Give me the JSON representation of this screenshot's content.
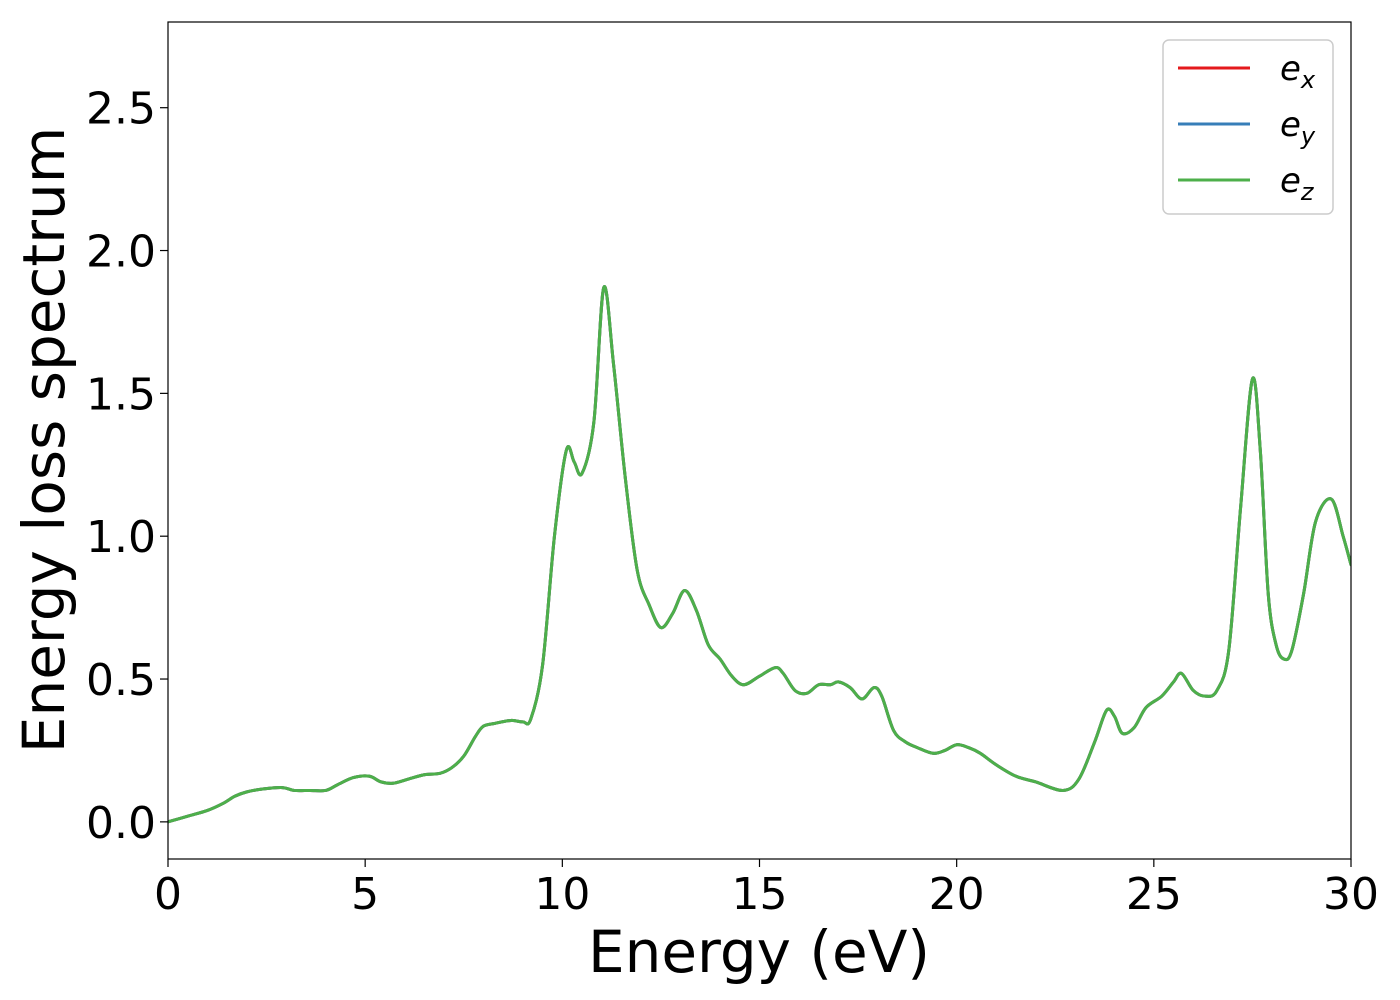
{
  "chart_data": {
    "type": "line",
    "title": "",
    "xlabel": "Energy (eV)",
    "ylabel": "Energy loss spectrum",
    "xlim": [
      0,
      30
    ],
    "ylim": [
      -0.13,
      2.8
    ],
    "xticks": [
      0,
      5,
      10,
      15,
      20,
      25,
      30
    ],
    "xtick_labels": [
      "0",
      "5",
      "10",
      "15",
      "20",
      "25",
      "30"
    ],
    "yticks": [
      0.0,
      0.5,
      1.0,
      1.5,
      2.0,
      2.5
    ],
    "ytick_labels": [
      "0.0",
      "0.5",
      "1.0",
      "1.5",
      "2.0",
      "2.5"
    ],
    "grid": false,
    "legend_position": "top-right",
    "x": [
      0,
      0.5,
      1.0,
      1.4,
      1.7,
      2.0,
      2.4,
      2.9,
      3.2,
      3.6,
      4.0,
      4.3,
      4.7,
      5.1,
      5.4,
      5.7,
      6.1,
      6.5,
      6.9,
      7.2,
      7.5,
      7.8,
      8.0,
      8.3,
      8.7,
      9.0,
      9.2,
      9.5,
      9.8,
      10.1,
      10.3,
      10.5,
      10.8,
      11.05,
      11.3,
      11.6,
      11.9,
      12.2,
      12.5,
      12.8,
      13.1,
      13.4,
      13.7,
      14.0,
      14.3,
      14.6,
      15.0,
      15.4,
      15.6,
      15.9,
      16.2,
      16.5,
      16.8,
      17.0,
      17.3,
      17.6,
      17.9,
      18.1,
      18.4,
      18.7,
      19.0,
      19.4,
      19.7,
      20.0,
      20.3,
      20.6,
      21.0,
      21.5,
      22.0,
      22.7,
      23.1,
      23.5,
      23.8,
      24.0,
      24.2,
      24.5,
      24.8,
      25.2,
      25.5,
      25.7,
      26.0,
      26.3,
      26.6,
      26.9,
      27.2,
      27.5,
      27.7,
      27.9,
      28.1,
      28.3,
      28.5,
      28.8,
      29.1,
      29.5,
      29.8,
      30.0
    ],
    "series": [
      {
        "name": "e_x",
        "color": "#e41a1c",
        "values": [
          0.0,
          0.02,
          0.04,
          0.065,
          0.09,
          0.105,
          0.115,
          0.12,
          0.11,
          0.11,
          0.11,
          0.13,
          0.155,
          0.16,
          0.14,
          0.135,
          0.15,
          0.165,
          0.17,
          0.19,
          0.23,
          0.3,
          0.335,
          0.345,
          0.355,
          0.35,
          0.36,
          0.55,
          1.0,
          1.3,
          1.26,
          1.22,
          1.4,
          1.87,
          1.6,
          1.2,
          0.88,
          0.76,
          0.68,
          0.73,
          0.81,
          0.74,
          0.62,
          0.57,
          0.51,
          0.48,
          0.51,
          0.54,
          0.52,
          0.46,
          0.45,
          0.48,
          0.48,
          0.49,
          0.47,
          0.43,
          0.47,
          0.44,
          0.32,
          0.28,
          0.26,
          0.24,
          0.25,
          0.27,
          0.26,
          0.24,
          0.2,
          0.16,
          0.14,
          0.11,
          0.15,
          0.28,
          0.39,
          0.37,
          0.31,
          0.33,
          0.4,
          0.44,
          0.49,
          0.52,
          0.46,
          0.44,
          0.46,
          0.6,
          1.1,
          1.55,
          1.3,
          0.8,
          0.62,
          0.57,
          0.6,
          0.8,
          1.05,
          1.13,
          1.0,
          0.9
        ]
      },
      {
        "name": "e_y",
        "color": "#377eb8",
        "values": [
          0.0,
          0.02,
          0.04,
          0.065,
          0.09,
          0.105,
          0.115,
          0.12,
          0.11,
          0.11,
          0.11,
          0.13,
          0.155,
          0.16,
          0.14,
          0.135,
          0.15,
          0.165,
          0.17,
          0.19,
          0.23,
          0.3,
          0.335,
          0.345,
          0.355,
          0.35,
          0.36,
          0.55,
          1.0,
          1.3,
          1.26,
          1.22,
          1.4,
          1.87,
          1.6,
          1.2,
          0.88,
          0.76,
          0.68,
          0.73,
          0.81,
          0.74,
          0.62,
          0.57,
          0.51,
          0.48,
          0.51,
          0.54,
          0.52,
          0.46,
          0.45,
          0.48,
          0.48,
          0.49,
          0.47,
          0.43,
          0.47,
          0.44,
          0.32,
          0.28,
          0.26,
          0.24,
          0.25,
          0.27,
          0.26,
          0.24,
          0.2,
          0.16,
          0.14,
          0.11,
          0.15,
          0.28,
          0.39,
          0.37,
          0.31,
          0.33,
          0.4,
          0.44,
          0.49,
          0.52,
          0.46,
          0.44,
          0.46,
          0.6,
          1.1,
          1.55,
          1.3,
          0.8,
          0.62,
          0.57,
          0.6,
          0.8,
          1.05,
          1.13,
          1.0,
          0.9
        ]
      },
      {
        "name": "e_z",
        "color": "#4daf4a",
        "values": [
          0.0,
          0.02,
          0.04,
          0.065,
          0.09,
          0.105,
          0.115,
          0.12,
          0.11,
          0.11,
          0.11,
          0.13,
          0.155,
          0.16,
          0.14,
          0.135,
          0.15,
          0.165,
          0.17,
          0.19,
          0.23,
          0.3,
          0.335,
          0.345,
          0.355,
          0.35,
          0.36,
          0.55,
          1.0,
          1.3,
          1.26,
          1.22,
          1.4,
          1.87,
          1.6,
          1.2,
          0.88,
          0.76,
          0.68,
          0.73,
          0.81,
          0.74,
          0.62,
          0.57,
          0.51,
          0.48,
          0.51,
          0.54,
          0.52,
          0.46,
          0.45,
          0.48,
          0.48,
          0.49,
          0.47,
          0.43,
          0.47,
          0.44,
          0.32,
          0.28,
          0.26,
          0.24,
          0.25,
          0.27,
          0.26,
          0.24,
          0.2,
          0.16,
          0.14,
          0.11,
          0.15,
          0.28,
          0.39,
          0.37,
          0.31,
          0.33,
          0.4,
          0.44,
          0.49,
          0.52,
          0.46,
          0.44,
          0.46,
          0.6,
          1.1,
          1.55,
          1.3,
          0.8,
          0.62,
          0.57,
          0.6,
          0.8,
          1.05,
          1.13,
          1.0,
          0.9
        ]
      }
    ],
    "legend": [
      {
        "base": "e",
        "sub": "x"
      },
      {
        "base": "e",
        "sub": "y"
      },
      {
        "base": "e",
        "sub": "z"
      }
    ]
  }
}
